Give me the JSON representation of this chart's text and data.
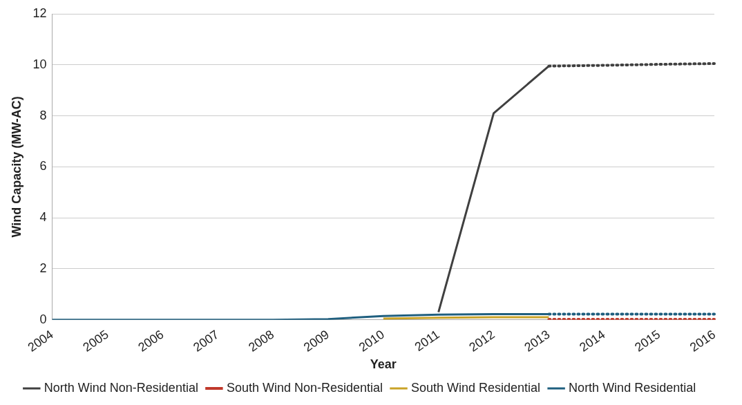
{
  "chart_data": {
    "type": "line",
    "xlabel": "Year",
    "ylabel": "Wind Capacity (MW-AC)",
    "categories": [
      "2004",
      "2005",
      "2006",
      "2007",
      "2008",
      "2009",
      "2010",
      "2011",
      "2012",
      "2013",
      "2014",
      "2015",
      "2016"
    ],
    "ylim": [
      0,
      12
    ],
    "yticks": [
      0,
      2,
      4,
      6,
      8,
      10,
      12
    ],
    "grid": "y",
    "legend": "bottom",
    "marker": "none",
    "series": [
      {
        "name": "North Wind Non-Residential",
        "color": "#404040",
        "line_style": "solid",
        "values": [
          null,
          null,
          null,
          null,
          null,
          null,
          null,
          0.3,
          8.1,
          9.95,
          null,
          null,
          null
        ]
      },
      {
        "name": "South Wind Non-Residential",
        "color": "#c0392b",
        "line_style": "dotted",
        "values": [
          null,
          null,
          null,
          null,
          null,
          null,
          null,
          null,
          null,
          0.02,
          0.02,
          0.02,
          0.02
        ]
      },
      {
        "name": "South Wind Residential",
        "color": "#c9a227",
        "line_style": "solid",
        "values": [
          null,
          null,
          null,
          null,
          null,
          null,
          0.05,
          0.08,
          0.1,
          0.1,
          null,
          null,
          null
        ]
      },
      {
        "name": "North Wind Residential",
        "color": "#1f5f7f",
        "line_style": "solid",
        "values": [
          0,
          0,
          0,
          0,
          0,
          0.03,
          0.15,
          0.2,
          0.22,
          0.22,
          null,
          null,
          null
        ]
      },
      {
        "color": "#404040",
        "line_style": "dotted",
        "values": [
          null,
          null,
          null,
          null,
          null,
          null,
          null,
          null,
          null,
          9.95,
          9.98,
          10.02,
          10.05
        ]
      },
      {
        "color": "#1f5f7f",
        "line_style": "dotted",
        "values": [
          null,
          null,
          null,
          null,
          null,
          null,
          null,
          null,
          null,
          0.22,
          0.22,
          0.22,
          0.22
        ]
      }
    ]
  }
}
